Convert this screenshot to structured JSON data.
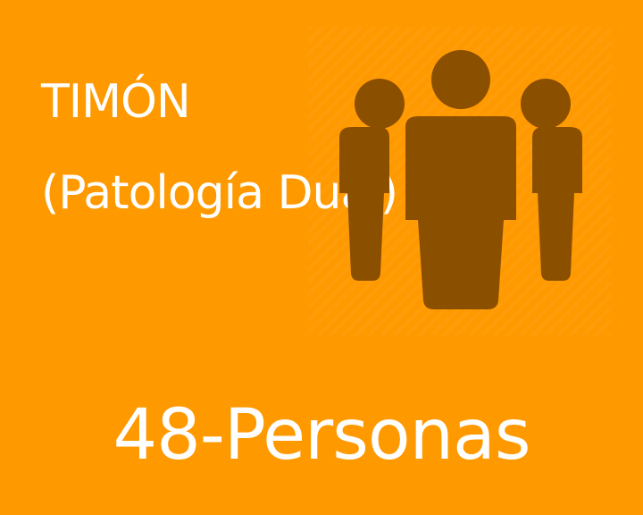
{
  "colors": {
    "background": "#ff9900",
    "icon": "#8b4f00",
    "text": "#ffffff"
  },
  "card": {
    "title": "TIMÓN",
    "subtitle": "(Patología Dual)",
    "icon": "people-group-icon",
    "count_label": "48-Personas"
  }
}
